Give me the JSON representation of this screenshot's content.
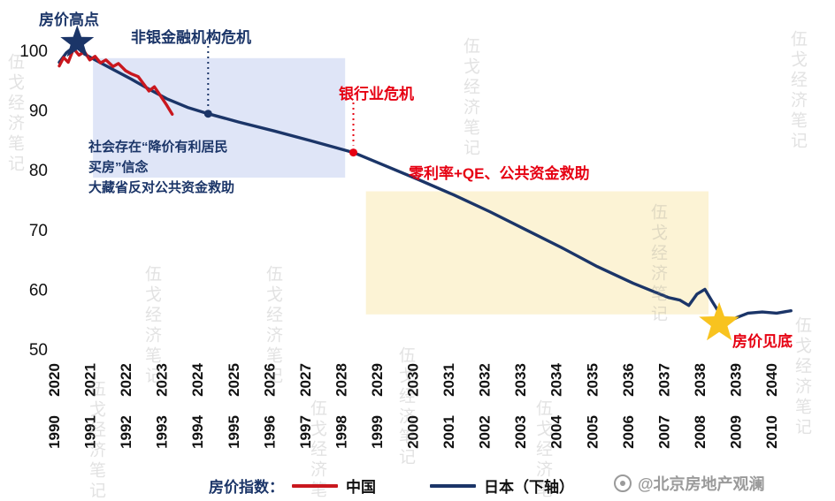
{
  "watermark": {
    "text": "伍戈经济笔记",
    "credit": "@北京房地产观澜"
  },
  "legend": {
    "title": "房价指数：",
    "title_color": "#1b3568",
    "items": [
      {
        "label": "中国",
        "color": "#c9171e"
      },
      {
        "label": "日本（下轴）",
        "color": "#1b3568"
      }
    ]
  },
  "annotations": {
    "peak": {
      "text": "房价高点",
      "color": "#1b3568"
    },
    "nonbank": {
      "text": "非银金融机构危机",
      "color": "#1b3568"
    },
    "bank": {
      "text": "银行业危机",
      "color": "#e60012"
    },
    "qe": {
      "text": "零利率+QE、公共资金救助",
      "color": "#e60012"
    },
    "belief": {
      "lines": [
        "社会存在“降价有利居民",
        "买房”信念",
        "大藏省反对公共资金救助"
      ],
      "color": "#1b3568"
    },
    "bottom": {
      "text": "房价见底",
      "color": "#e60012"
    }
  },
  "chart_data": {
    "type": "line",
    "ylim": [
      50,
      103
    ],
    "yticks": [
      100,
      90,
      80,
      70,
      60,
      50
    ],
    "x_top_range": [
      2020,
      2040
    ],
    "x_bottom_range": [
      1990,
      2010
    ],
    "x_top_labels": [
      "2020",
      "2021",
      "2022",
      "2023",
      "2024",
      "2025",
      "2026",
      "2027",
      "2028",
      "2029",
      "2030",
      "2031",
      "2032",
      "2033",
      "2034",
      "2035",
      "2036",
      "2037",
      "2038",
      "2039",
      "2040"
    ],
    "x_bottom_labels": [
      "1990",
      "1991",
      "1992",
      "1993",
      "1994",
      "1995",
      "1996",
      "1997",
      "1998",
      "1999",
      "2000",
      "2001",
      "2002",
      "2003",
      "2004",
      "2005",
      "2006",
      "2007",
      "2008",
      "2009",
      "2010"
    ],
    "regions": [
      {
        "id": "belief-box",
        "x0": 1990.94,
        "x1": 1997.97,
        "top": 98.7,
        "bottom": 78.7,
        "color": "#dfe5f7"
      },
      {
        "id": "qe-box",
        "x0": 1998.55,
        "x1": 2008.1,
        "top": 76.4,
        "bottom": 55.8,
        "color": "#fcf3d5"
      }
    ],
    "series": [
      {
        "name": "日本（下轴）",
        "axis": "bottom",
        "color": "#1b3568",
        "points": [
          [
            1990.0,
            98.0
          ],
          [
            1990.2,
            99.6
          ],
          [
            1990.45,
            100.8
          ],
          [
            1990.7,
            99.4
          ],
          [
            1991.0,
            98.4
          ],
          [
            1991.5,
            96.8
          ],
          [
            1992.0,
            95.2
          ],
          [
            1992.5,
            93.5
          ],
          [
            1993.0,
            91.9
          ],
          [
            1993.6,
            90.4
          ],
          [
            1994.15,
            89.4
          ],
          [
            1995.0,
            88.0
          ],
          [
            1996.0,
            86.5
          ],
          [
            1997.0,
            84.9
          ],
          [
            1998.2,
            82.9
          ],
          [
            1999.0,
            80.9
          ],
          [
            2000.0,
            78.4
          ],
          [
            2001.0,
            75.8
          ],
          [
            2002.0,
            73.0
          ],
          [
            2003.0,
            70.0
          ],
          [
            2004.0,
            67.0
          ],
          [
            2005.0,
            63.8
          ],
          [
            2006.0,
            61.0
          ],
          [
            2006.5,
            59.8
          ],
          [
            2007.0,
            58.6
          ],
          [
            2007.3,
            58.2
          ],
          [
            2007.55,
            57.3
          ],
          [
            2007.78,
            59.2
          ],
          [
            2008.0,
            60.0
          ],
          [
            2008.2,
            58.0
          ],
          [
            2008.45,
            55.6
          ],
          [
            2008.65,
            54.6
          ],
          [
            2008.9,
            55.3
          ],
          [
            2009.2,
            56.0
          ],
          [
            2009.6,
            56.2
          ],
          [
            2010.0,
            56.0
          ],
          [
            2010.4,
            56.4
          ]
        ]
      },
      {
        "name": "中国",
        "axis": "top",
        "color": "#c9171e",
        "points": [
          [
            2020.0,
            97.4
          ],
          [
            2020.12,
            98.8
          ],
          [
            2020.25,
            98.0
          ],
          [
            2020.4,
            100.3
          ],
          [
            2020.55,
            99.2
          ],
          [
            2020.7,
            99.8
          ],
          [
            2020.85,
            98.4
          ],
          [
            2021.0,
            99.0
          ],
          [
            2021.15,
            97.9
          ],
          [
            2021.3,
            98.4
          ],
          [
            2021.5,
            97.3
          ],
          [
            2021.65,
            97.8
          ],
          [
            2021.85,
            96.6
          ],
          [
            2022.0,
            96.1
          ],
          [
            2022.2,
            95.6
          ],
          [
            2022.35,
            94.4
          ],
          [
            2022.5,
            93.2
          ],
          [
            2022.65,
            93.9
          ],
          [
            2022.8,
            92.6
          ],
          [
            2023.0,
            90.8
          ],
          [
            2023.15,
            89.3
          ]
        ]
      }
    ],
    "markers": [
      {
        "id": "peak-star",
        "type": "star",
        "year": 1990.5,
        "value": 101.3,
        "color": "#1b3568",
        "R": 20,
        "r": 8
      },
      {
        "id": "nonbank",
        "type": "dot",
        "year": 1994.15,
        "value": 89.4,
        "color": "#1b3568"
      },
      {
        "id": "bank",
        "type": "dot",
        "year": 1998.2,
        "value": 82.9,
        "color": "#e60012"
      },
      {
        "id": "bottom-star",
        "type": "star",
        "year": 2008.4,
        "value": 54.3,
        "color": "#f8c31f",
        "R": 24,
        "r": 9.8
      }
    ]
  }
}
